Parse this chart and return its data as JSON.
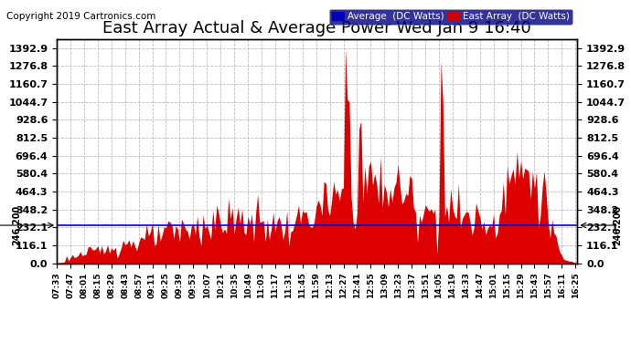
{
  "title": "East Array Actual & Average Power Wed Jan 9 16:40",
  "copyright": "Copyright 2019 Cartronics.com",
  "yticks": [
    0.0,
    116.1,
    232.1,
    348.2,
    464.3,
    580.4,
    696.4,
    812.5,
    928.6,
    1044.7,
    1160.7,
    1276.8,
    1392.9
  ],
  "avg_line_value": 246.2,
  "avg_line_label": "246.200",
  "legend_avg_bg": "#0000cc",
  "legend_east_bg": "#cc0000",
  "legend_avg_text": "Average  (DC Watts)",
  "legend_east_text": "East Array  (DC Watts)",
  "fill_color": "#dd0000",
  "avg_line_color": "#0000dd",
  "background_color": "#ffffff",
  "plot_bg_color": "#ffffff",
  "grid_color": "#bbbbbb",
  "title_fontsize": 13,
  "copyright_fontsize": 7.5,
  "xtick_fontsize": 6.5,
  "ytick_fontsize": 8,
  "time_step_minutes": 2
}
